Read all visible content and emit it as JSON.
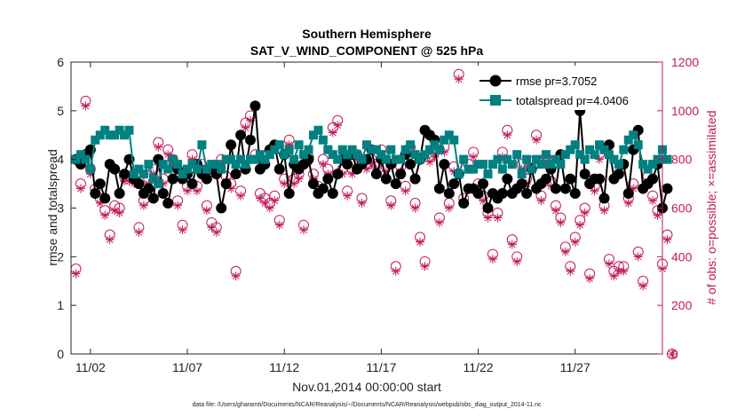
{
  "chart_data": {
    "type": "line",
    "title": "Southern Hemisphere",
    "subtitle": "SAT_V_WIND_COMPONENT @ 525 hPa",
    "xlabel": "Nov.01,2014 00:00:00 start",
    "ylabel": "rmse and totalspread",
    "ylabel_right": "# of obs: o=possible; ×=assimilated",
    "footnote": "data file: /Users/gharamti/Documents/NCAR/Reanalysis/~/Documents/NCAR/Reanalysis/webpub/obs_diag_output_2014-11.nc",
    "xlim": [
      0.0,
      30.5
    ],
    "ylim": [
      0,
      6
    ],
    "ylim_right": [
      0,
      1200
    ],
    "x_ticks": [
      {
        "value": 1.0,
        "label": "11/02"
      },
      {
        "value": 6.0,
        "label": "11/07"
      },
      {
        "value": 11.0,
        "label": "11/12"
      },
      {
        "value": 16.0,
        "label": "11/17"
      },
      {
        "value": 21.0,
        "label": "11/22"
      },
      {
        "value": 26.0,
        "label": "11/27"
      }
    ],
    "y_ticks": [
      "0",
      "1",
      "2",
      "3",
      "4",
      "5",
      "6"
    ],
    "y_ticks_right": [
      "0",
      "200",
      "400",
      "600",
      "800",
      "1000",
      "1200"
    ],
    "legend": {
      "position": "top-right"
    },
    "series": [
      {
        "name": "rmse pr=3.7052",
        "color": "#000000",
        "values": [
          4.0,
          3.9,
          4.1,
          4.2,
          3.3,
          3.5,
          3.2,
          3.9,
          3.8,
          3.3,
          3.7,
          4.0,
          3.6,
          3.5,
          3.3,
          3.4,
          3.2,
          4.0,
          3.3,
          3.1,
          3.6,
          3.8,
          3.6,
          3.7,
          3.5,
          3.9,
          3.7,
          3.6,
          3.8,
          3.7,
          3.0,
          3.5,
          4.3,
          3.7,
          4.5,
          3.8,
          4.4,
          5.1,
          3.8,
          3.9,
          4.2,
          4.3,
          3.8,
          4.1,
          3.3,
          3.9,
          3.8,
          3.9,
          4.0,
          3.5,
          3.3,
          3.4,
          3.6,
          3.3,
          3.7,
          4.0,
          3.9,
          4.1,
          3.8,
          3.9,
          4.0,
          4.2,
          3.7,
          4.0,
          3.6,
          3.9,
          3.5,
          3.7,
          4.1,
          3.9,
          3.6,
          4.0,
          4.6,
          4.5,
          4.4,
          3.4,
          3.9,
          3.3,
          3.5,
          3.7,
          3.1,
          3.4,
          3.4,
          3.3,
          3.5,
          3.0,
          3.3,
          3.2,
          3.3,
          3.6,
          3.3,
          3.4,
          3.5,
          3.3,
          3.8,
          3.4,
          3.5,
          3.6,
          3.8,
          3.4,
          4.1,
          3.4,
          3.6,
          3.3,
          5.0,
          3.7,
          3.5,
          3.6,
          3.6,
          3.2,
          4.3,
          3.6,
          3.7,
          3.9,
          3.3,
          4.2,
          4.6,
          3.4,
          3.5,
          3.6,
          3.9,
          3.0,
          3.4
        ]
      },
      {
        "name": "totalspread pr=4.0406",
        "color": "#008080",
        "values": [
          4.0,
          4.1,
          4.0,
          3.8,
          4.4,
          4.5,
          4.6,
          4.5,
          4.5,
          4.6,
          4.5,
          4.6,
          3.7,
          3.8,
          3.7,
          3.9,
          3.6,
          3.5,
          3.9,
          3.8,
          4.0,
          3.9,
          3.7,
          3.8,
          3.9,
          3.8,
          4.3,
          3.8,
          3.9,
          3.9,
          3.8,
          4.0,
          4.0,
          3.9,
          4.0,
          3.9,
          4.0,
          4.0,
          4.1,
          4.0,
          4.1,
          4.2,
          4.3,
          4.1,
          4.2,
          4.0,
          4.3,
          4.1,
          4.2,
          4.5,
          4.6,
          4.4,
          4.2,
          4.1,
          4.0,
          4.2,
          4.1,
          4.2,
          4.1,
          4.0,
          4.3,
          4.2,
          4.2,
          4.1,
          4.0,
          4.2,
          4.0,
          4.0,
          4.2,
          4.3,
          4.1,
          4.0,
          4.1,
          4.2,
          4.3,
          4.2,
          4.4,
          4.5,
          4.4,
          3.7,
          4.0,
          3.8,
          3.8,
          3.9,
          3.9,
          3.7,
          3.9,
          4.0,
          3.8,
          4.0,
          3.9,
          4.1,
          3.7,
          4.0,
          3.8,
          4.0,
          3.9,
          4.1,
          3.9,
          4.0,
          3.9,
          4.1,
          4.2,
          4.3,
          4.1,
          4.0,
          4.2,
          4.1,
          4.3,
          4.2,
          4.1,
          4.0,
          3.9,
          4.2,
          4.4,
          4.5,
          4.3,
          3.9,
          3.8,
          3.9,
          4.0,
          4.2,
          4.0
        ]
      },
      {
        "name": "obs possible",
        "color": "#c2185b",
        "values": [
          350,
          700,
          1040,
          760,
          680,
          640,
          590,
          490,
          610,
          600,
          730,
          730,
          720,
          520,
          630,
          720,
          760,
          870,
          720,
          840,
          800,
          630,
          530,
          690,
          820,
          690,
          780,
          610,
          540,
          520,
          800,
          730,
          700,
          340,
          670,
          950,
          980,
          820,
          660,
          640,
          620,
          650,
          550,
          720,
          880,
          720,
          740,
          530,
          810,
          740,
          690,
          800,
          760,
          930,
          960,
          760,
          670,
          760,
          820,
          640,
          780,
          800,
          780,
          840,
          770,
          630,
          360,
          770,
          690,
          850,
          620,
          480,
          380,
          810,
          830,
          560,
          850,
          620,
          770,
          1150,
          640,
          780,
          830,
          700,
          650,
          580,
          410,
          580,
          830,
          920,
          470,
          400,
          780,
          720,
          790,
          900,
          650,
          810,
          710,
          610,
          560,
          440,
          360,
          480,
          550,
          600,
          330,
          690,
          820,
          610,
          390,
          340,
          360,
          360,
          640,
          700,
          420,
          300,
          730,
          650,
          590,
          370,
          490,
          0
        ]
      },
      {
        "name": "obs assimilated",
        "color": "#c2185b",
        "values": [
          330,
          680,
          1020,
          740,
          660,
          620,
          570,
          470,
          590,
          580,
          710,
          710,
          700,
          500,
          610,
          700,
          740,
          850,
          700,
          820,
          780,
          610,
          510,
          670,
          800,
          670,
          760,
          590,
          520,
          500,
          780,
          710,
          680,
          320,
          650,
          930,
          960,
          800,
          640,
          620,
          600,
          630,
          530,
          700,
          860,
          700,
          720,
          510,
          790,
          720,
          670,
          780,
          740,
          910,
          940,
          740,
          650,
          740,
          800,
          620,
          760,
          780,
          760,
          820,
          750,
          610,
          340,
          750,
          670,
          830,
          600,
          460,
          360,
          790,
          810,
          540,
          830,
          600,
          750,
          1130,
          620,
          760,
          810,
          680,
          630,
          560,
          390,
          560,
          810,
          900,
          450,
          380,
          760,
          700,
          770,
          880,
          630,
          790,
          690,
          590,
          540,
          420,
          340,
          460,
          530,
          580,
          310,
          670,
          800,
          590,
          370,
          320,
          340,
          340,
          620,
          680,
          400,
          280,
          710,
          630,
          570,
          350,
          470,
          0
        ]
      }
    ]
  }
}
